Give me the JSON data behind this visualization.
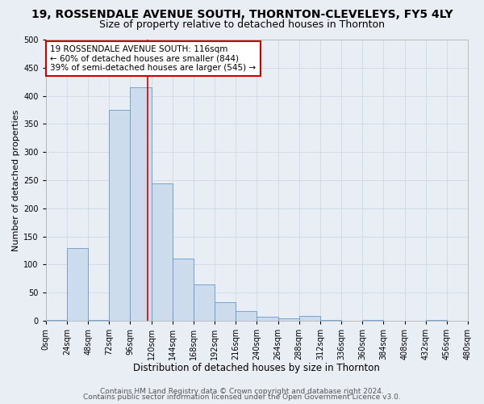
{
  "title": "19, ROSSENDALE AVENUE SOUTH, THORNTON-CLEVELEYS, FY5 4LY",
  "subtitle": "Size of property relative to detached houses in Thornton",
  "xlabel": "Distribution of detached houses by size in Thornton",
  "ylabel": "Number of detached properties",
  "footer_lines": [
    "Contains HM Land Registry data © Crown copyright and database right 2024.",
    "Contains public sector information licensed under the Open Government Licence v3.0."
  ],
  "bin_edges": [
    0,
    24,
    48,
    72,
    96,
    120,
    144,
    168,
    192,
    216,
    240,
    264,
    288,
    312,
    336,
    360,
    384,
    408,
    432,
    456,
    480
  ],
  "bar_heights": [
    2,
    130,
    2,
    375,
    415,
    245,
    110,
    65,
    33,
    17,
    7,
    5,
    8,
    2,
    0,
    2,
    0,
    0,
    2,
    0
  ],
  "bar_facecolor": "#ccdcec",
  "bar_edgecolor": "#6699cc",
  "vline_x": 116,
  "vline_color": "#cc0000",
  "vline_linewidth": 1.2,
  "annotation_line1": "19 ROSSENDALE AVENUE SOUTH: 116sqm",
  "annotation_line2": "← 60% of detached houses are smaller (844)",
  "annotation_line3": "39% of semi-detached houses are larger (545) →",
  "annotation_box_facecolor": "white",
  "annotation_box_edgecolor": "#cc0000",
  "annotation_fontsize": 7.5,
  "xlim": [
    0,
    480
  ],
  "ylim": [
    0,
    500
  ],
  "yticks": [
    0,
    50,
    100,
    150,
    200,
    250,
    300,
    350,
    400,
    450,
    500
  ],
  "xtick_labels": [
    "0sqm",
    "24sqm",
    "48sqm",
    "72sqm",
    "96sqm",
    "120sqm",
    "144sqm",
    "168sqm",
    "192sqm",
    "216sqm",
    "240sqm",
    "264sqm",
    "288sqm",
    "312sqm",
    "336sqm",
    "360sqm",
    "384sqm",
    "408sqm",
    "432sqm",
    "456sqm",
    "480sqm"
  ],
  "grid_color": "#d0d8e4",
  "background_color": "#e8eef4",
  "title_fontsize": 10,
  "subtitle_fontsize": 9,
  "xlabel_fontsize": 8.5,
  "ylabel_fontsize": 8,
  "tick_fontsize": 7,
  "footer_fontsize": 6.5
}
